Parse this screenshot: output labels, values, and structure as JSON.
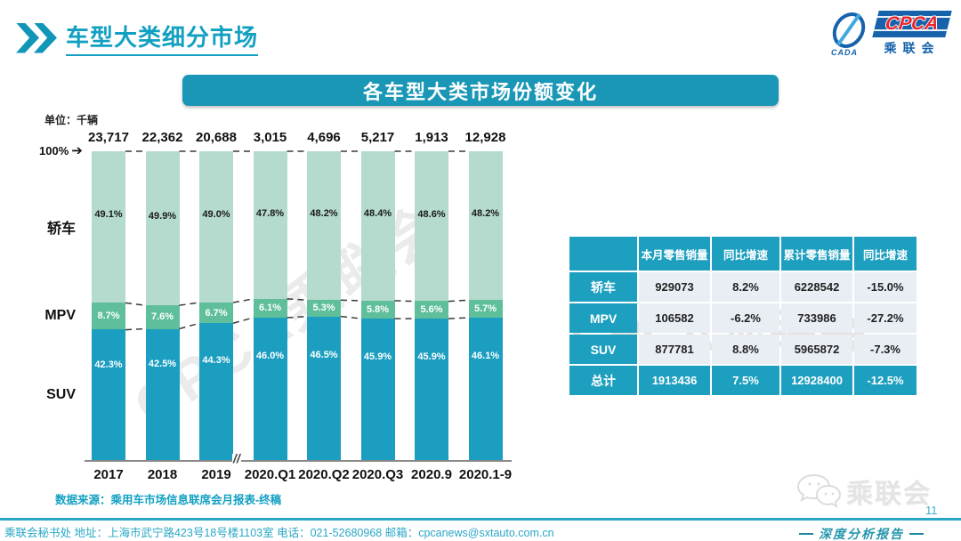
{
  "page": {
    "title": "车型大类细分市场",
    "page_number": "11",
    "unit_label": "单位：千辆",
    "hundred_label": "100%",
    "source_note": "数据来源：乘用车市场信息联席会月报表-终稿",
    "footer_text": "乘联会秘书处   地址：上海市武宁路423号18号楼1103室   电话：021-52680968   邮箱：cpcanews@sxtauto.com.cn",
    "report_label": "深度分析报告",
    "watermark": "CPCA乘联会",
    "wechat_label": "乘联会"
  },
  "logo": {
    "cpca": "CPCA",
    "cada": "CADA",
    "name_cn": "乘联会"
  },
  "banner": {
    "title": "各车型大类市场份额变化"
  },
  "chart_data": {
    "type": "bar",
    "stacked": true,
    "title": "各车型大类市场份额变化",
    "unit": "千辆",
    "ylim": [
      0,
      100
    ],
    "axis_break_after": "2019",
    "categories": [
      "2017",
      "2018",
      "2019",
      "2020.Q1",
      "2020.Q2",
      "2020.Q3",
      "2020.9",
      "2020.1-9"
    ],
    "totals": [
      "23,717",
      "22,362",
      "20,688",
      "3,015",
      "4,696",
      "5,217",
      "1,913",
      "12,928"
    ],
    "series": [
      {
        "name": "轿车",
        "color": "#b5dbce",
        "label_color": "#1a1a1a",
        "values": [
          49.1,
          49.9,
          49.0,
          47.8,
          48.2,
          48.4,
          48.6,
          48.2
        ]
      },
      {
        "name": "MPV",
        "color": "#5fbf9b",
        "label_color": "#ffffff",
        "values": [
          8.7,
          7.6,
          6.7,
          6.1,
          5.3,
          5.8,
          5.6,
          5.7
        ]
      },
      {
        "name": "SUV",
        "color": "#1b9ec0",
        "label_color": "#ffffff",
        "values": [
          42.3,
          42.5,
          44.3,
          46.0,
          46.5,
          45.9,
          45.9,
          46.1
        ]
      }
    ]
  },
  "table": {
    "headers": [
      "",
      "本月零售销量",
      "同比增速",
      "累计零售销量",
      "同比增速"
    ],
    "rows": [
      {
        "label": "轿车",
        "cells": [
          "929073",
          "8.2%",
          "6228542",
          "-15.0%"
        ],
        "total": false
      },
      {
        "label": "MPV",
        "cells": [
          "106582",
          "-6.2%",
          "733986",
          "-27.2%"
        ],
        "total": false
      },
      {
        "label": "SUV",
        "cells": [
          "877781",
          "8.8%",
          "5965872",
          "-7.3%"
        ],
        "total": false
      },
      {
        "label": "总计",
        "cells": [
          "1913436",
          "7.5%",
          "12928400",
          "-12.5%"
        ],
        "total": true
      }
    ]
  },
  "colors": {
    "accent_teal": "#1b9ec0",
    "banner_teal": "#1a97b6",
    "sedan_green": "#b5dbce",
    "mpv_green": "#5fbf9b",
    "footer_teal": "#2aa7c7",
    "logo_blue": "#1663ac",
    "logo_red": "#e8262d"
  }
}
